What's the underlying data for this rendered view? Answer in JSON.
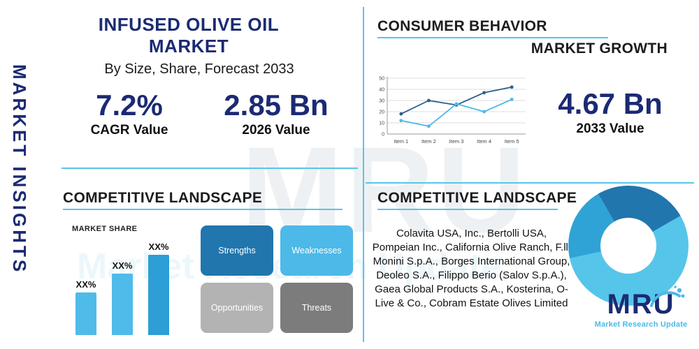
{
  "accent_colors": {
    "navy": "#1b2a73",
    "light_blue": "#4db9e8",
    "steel": "#2d5f8c",
    "divider": "#56c5ea"
  },
  "sidebar": {
    "vertical_title": "MARKET INSIGHTS"
  },
  "header": {
    "title": "INFUSED OLIVE OIL MARKET",
    "subtitle": "By Size, Share, Forecast 2033"
  },
  "stats": {
    "cagr": {
      "value": "7.2%",
      "label": "CAGR Value"
    },
    "value_2026": {
      "value": "2.85 Bn",
      "label": "2026 Value"
    },
    "value_2033": {
      "value": "4.67 Bn",
      "label": "2033 Value"
    }
  },
  "consumer_behavior": {
    "title": "CONSUMER BEHAVIOR",
    "subtitle": "MARKET GROWTH"
  },
  "competitive_landscape_left": {
    "title": "COMPETITIVE LANDSCAPE",
    "swot": [
      {
        "label": "Strengths",
        "color": "#2176ae"
      },
      {
        "label": "Weaknesses",
        "color": "#4db9e8"
      },
      {
        "label": "Opportunities",
        "color": "#b3b3b3"
      },
      {
        "label": "Threats",
        "color": "#7c7c7c"
      }
    ]
  },
  "competitive_landscape_right": {
    "title": "COMPETITIVE LANDSCAPE",
    "companies": "Colavita USA, Inc., Bertolli USA, Pompeian Inc., California Olive Ranch, F.lli Monini S.p.A., Borges International Group, Deoleo S.A., Filippo Berio (Salov S.p.A.), Gaea Global Products S.A., Kosterina, O-Live & Co., Cobram Estate Olives Limited"
  },
  "logo": {
    "text": "MRU",
    "tagline": "Market Research Update"
  },
  "watermark": {
    "main": "MRU",
    "sub": "Market Research Update"
  },
  "chart_data": [
    {
      "type": "line",
      "title": "Market Growth",
      "x": [
        "Item 1",
        "Item 2",
        "Item 3",
        "Item 4",
        "Item 5"
      ],
      "series": [
        {
          "name": "series-dark",
          "color": "#2d5f8c",
          "values": [
            18,
            30,
            26,
            37,
            42
          ]
        },
        {
          "name": "series-light",
          "color": "#4db9e8",
          "values": [
            12,
            7,
            27,
            20,
            31
          ]
        }
      ],
      "ylim": [
        0,
        50
      ],
      "yticks": [
        0,
        10,
        20,
        30,
        40,
        50
      ],
      "grid": true,
      "legend": "none"
    },
    {
      "type": "bar",
      "title": "MARKET SHARE",
      "categories": [
        "XX%",
        "XX%",
        "XX%"
      ],
      "values": [
        40,
        58,
        76
      ],
      "colors": [
        "#4fbbe9",
        "#4fbbe9",
        "#2d9ed6"
      ],
      "ylim": [
        0,
        80
      ]
    },
    {
      "type": "pie",
      "donut": true,
      "title": "Competitive Landscape Share",
      "start_angle": -30,
      "slices": [
        {
          "name": "segment-dark",
          "value": 25,
          "color": "#2176ae"
        },
        {
          "name": "segment-light",
          "value": 55,
          "color": "#56c5ea"
        },
        {
          "name": "segment-medium",
          "value": 20,
          "color": "#2fa3d6"
        }
      ]
    }
  ]
}
